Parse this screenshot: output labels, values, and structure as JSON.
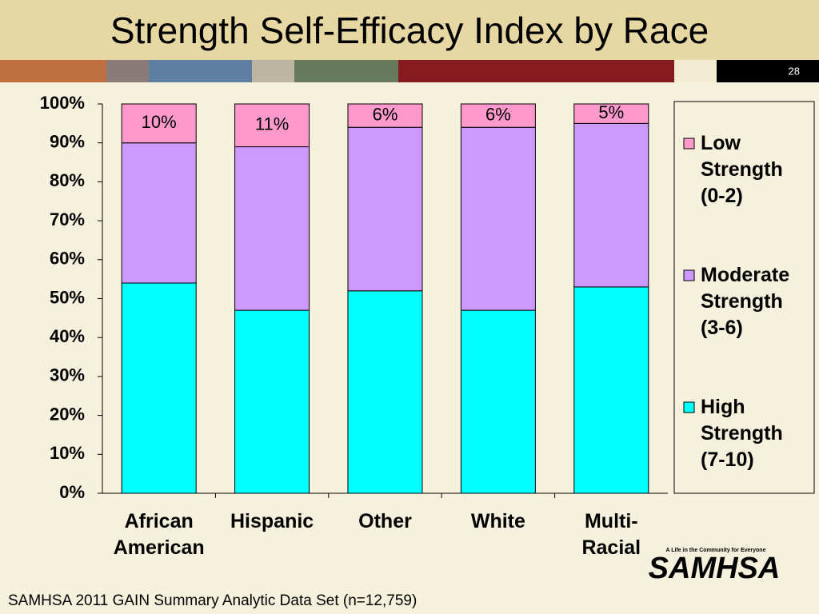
{
  "slide_number": "28",
  "footer": "SAMHSA 2011 GAIN Summary Analytic Data Set (n=12,759)",
  "logo": {
    "tagline": "A Life in the Community for Everyone",
    "name": "SAMHSA"
  },
  "chart_data": {
    "type": "stacked_bar",
    "title": "Strength Self-Efficacy Index by Race",
    "categories": [
      "African American",
      "Hispanic",
      "Other",
      "White",
      "Multi-Racial"
    ],
    "series": [
      {
        "name": "High Strength (7-10)",
        "color": "#00ffff",
        "values": [
          54,
          47,
          52,
          47,
          53
        ]
      },
      {
        "name": "Moderate Strength (3-6)",
        "color": "#cc99ff",
        "values": [
          36,
          42,
          42,
          47,
          42
        ]
      },
      {
        "name": "Low Strength (0-2)",
        "color": "#ff99cc",
        "values": [
          10,
          11,
          6,
          6,
          5
        ],
        "value_labels": [
          "10%",
          "11%",
          "6%",
          "6%",
          "5%"
        ]
      }
    ],
    "ylim": [
      0,
      100
    ],
    "yticks": [
      {
        "value": 0,
        "label": "0%"
      },
      {
        "value": 10,
        "label": "10%"
      },
      {
        "value": 20,
        "label": "20%"
      },
      {
        "value": 30,
        "label": "30%"
      },
      {
        "value": 40,
        "label": "40%"
      },
      {
        "value": 50,
        "label": "50%"
      },
      {
        "value": 60,
        "label": "60%"
      },
      {
        "value": 70,
        "label": "70%"
      },
      {
        "value": 80,
        "label": "80%"
      },
      {
        "value": 90,
        "label": "90%"
      },
      {
        "value": 100,
        "label": "100%"
      }
    ],
    "legend": "right"
  }
}
